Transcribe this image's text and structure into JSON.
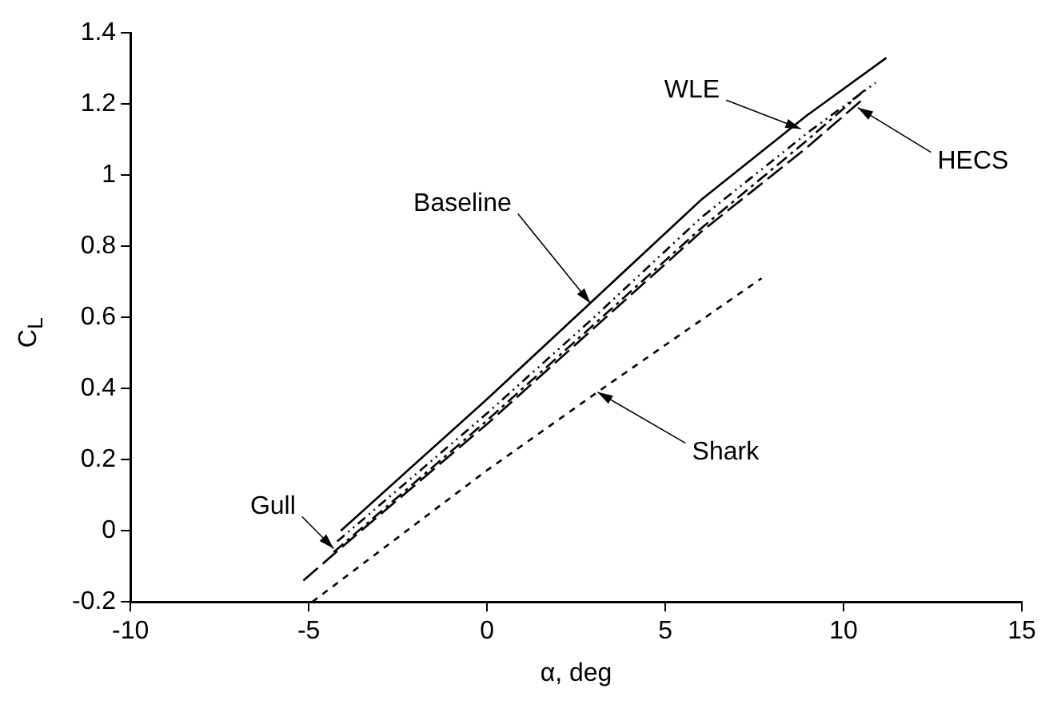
{
  "chart_data": {
    "type": "line",
    "xlabel": "α, deg",
    "ylabel": "C$_{L}$",
    "xlim": [
      -10,
      15
    ],
    "xticks": [
      -10,
      -5,
      0,
      5,
      10,
      15
    ],
    "ylim": [
      -0.2,
      1.4
    ],
    "yticks": [
      -0.2,
      0,
      0.2,
      0.4,
      0.6,
      0.8,
      1,
      1.2,
      1.4
    ],
    "grid": false,
    "legend": false,
    "marker": "none",
    "series": [
      {
        "color": "#000000",
        "line_style": "solid",
        "x": [
          -4.1,
          0,
          3,
          6,
          9,
          11.2
        ],
        "values": [
          0,
          0.37,
          0.65,
          0.93,
          1.17,
          1.33
        ]
      },
      {
        "color": "#000000",
        "line_style": "dashed",
        "x": [
          -4.2,
          0,
          3,
          6,
          9,
          10.9
        ],
        "values": [
          -0.03,
          0.33,
          0.6,
          0.88,
          1.12,
          1.26
        ]
      },
      {
        "color": "#000000",
        "line_style": "dashed",
        "x": [
          -4.3,
          0,
          3,
          6,
          9,
          10.6
        ],
        "values": [
          -0.06,
          0.31,
          0.58,
          0.85,
          1.1,
          1.24
        ]
      },
      {
        "color": "#000000",
        "line_style": "dashed",
        "x": [
          -5.15,
          -4,
          0,
          3,
          6,
          9,
          10.5
        ],
        "values": [
          -0.14,
          -0.04,
          0.3,
          0.57,
          0.84,
          1.08,
          1.21
        ]
      },
      {
        "color": "#000000",
        "line_style": "dashed",
        "x": [
          -4.9,
          0,
          3.1,
          7.7
        ],
        "values": [
          -0.2,
          0.17,
          0.39,
          0.71
        ]
      }
    ],
    "annotations": [
      {
        "text": "Baseline",
        "x": 2.9,
        "y": 0.64
      },
      {
        "text": "WLE",
        "x": 8.8,
        "y": 1.13
      },
      {
        "text": "HECS",
        "x": 10.4,
        "y": 1.19
      },
      {
        "text": "Shark",
        "x": 3.1,
        "y": 0.39
      },
      {
        "text": "Gull",
        "x": -4.3,
        "y": -0.05
      }
    ]
  }
}
